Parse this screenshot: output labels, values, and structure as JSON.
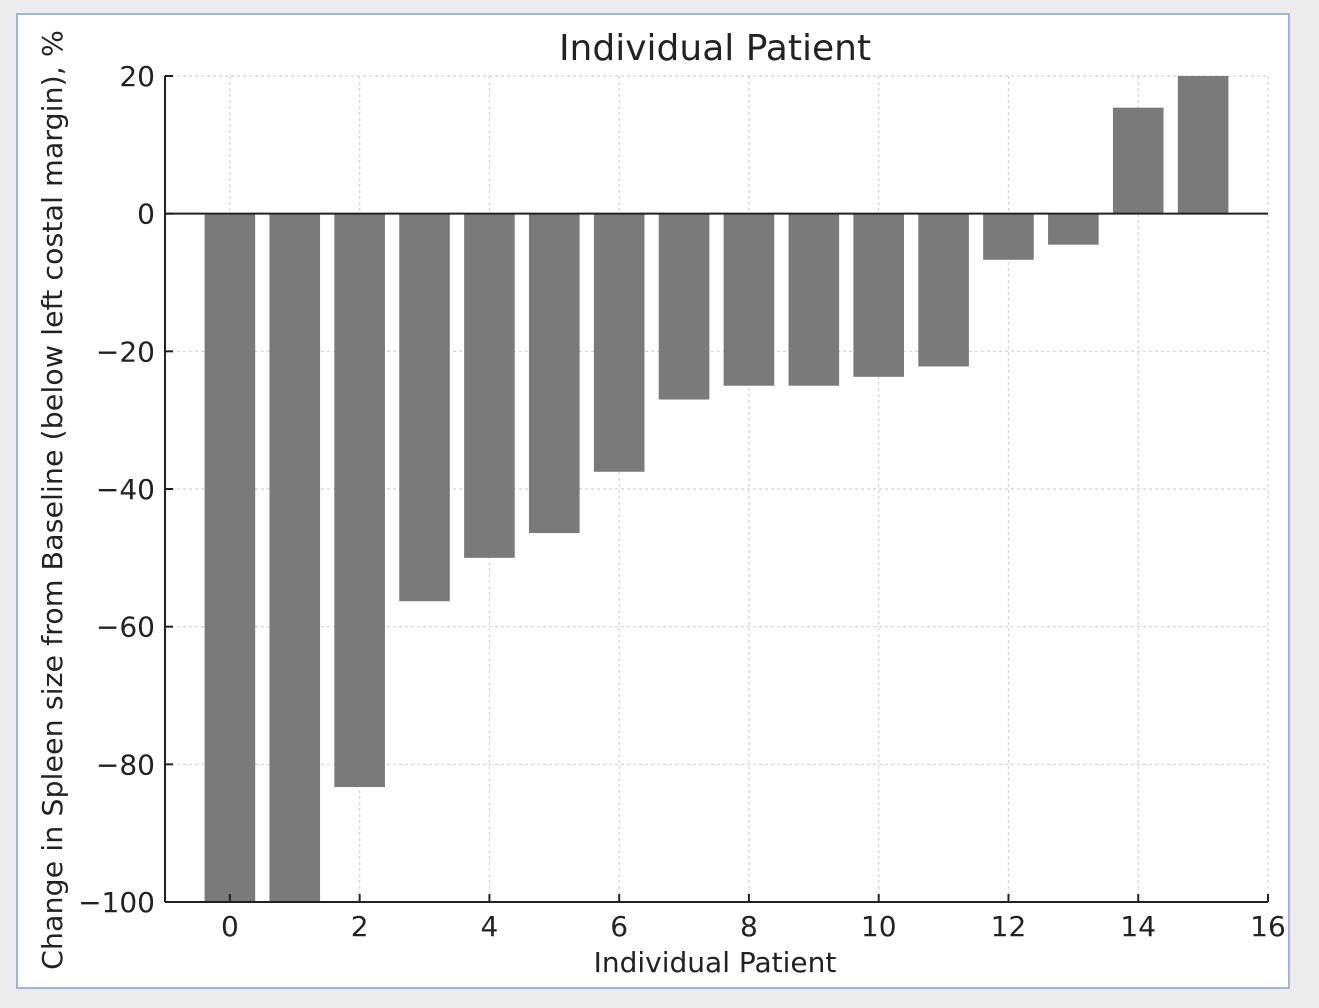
{
  "chart_data": {
    "type": "bar",
    "title": "Individual Patient",
    "xlabel": "Individual Patient",
    "ylabel": "Change in Spleen size from Baseline (below left costal margin), %",
    "x": [
      0,
      1,
      2,
      3,
      4,
      5,
      6,
      7,
      8,
      9,
      10,
      11,
      12,
      13,
      14,
      15
    ],
    "values": [
      -100,
      -100,
      -83.3,
      -56.3,
      -50,
      -46.4,
      -37.5,
      -27,
      -25,
      -25,
      -23.7,
      -22.2,
      -6.7,
      -4.5,
      15.4,
      20
    ],
    "xlim": [
      -1,
      16
    ],
    "ylim": [
      -100,
      20
    ],
    "xticks": [
      0,
      2,
      4,
      6,
      8,
      10,
      12,
      14,
      16
    ],
    "yticks": [
      20,
      0,
      -20,
      -40,
      -60,
      -80,
      -100
    ],
    "xtick_labels": [
      "0",
      "2",
      "4",
      "6",
      "8",
      "10",
      "12",
      "14",
      "16"
    ],
    "ytick_labels": [
      "20",
      "0",
      "−20",
      "−40",
      "−60",
      "−80",
      "−100"
    ],
    "grid": true,
    "zero_line": true,
    "bar_color": "#7a7a7a",
    "frame_border_color": "#9db3e0"
  }
}
